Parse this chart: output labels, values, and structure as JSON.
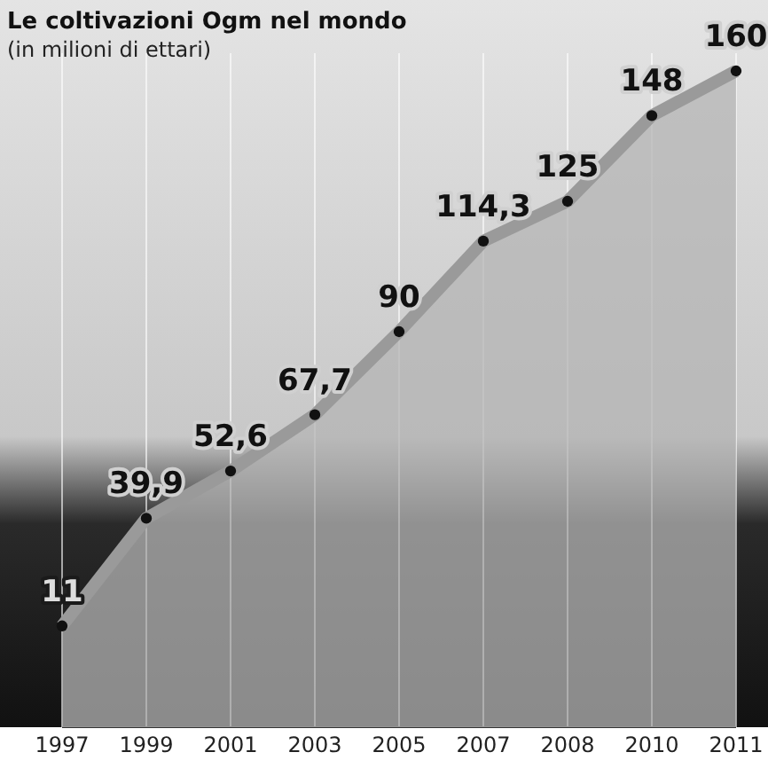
{
  "chart_data": {
    "type": "area",
    "title": "Le coltivazioni Ogm nel mondo",
    "subtitle": "(in milioni di ettari)",
    "categories": [
      "1997",
      "1999",
      "2001",
      "2003",
      "2005",
      "2007",
      "2008",
      "2010",
      "2011"
    ],
    "series": [
      {
        "color": "#9a9a9a",
        "values": [
          11,
          39.9,
          52.6,
          67.7,
          90,
          114.3,
          125,
          148,
          160
        ],
        "value_labels": [
          "11",
          "39,9",
          "52,6",
          "67,7",
          "90",
          "114,3",
          "125",
          "148",
          "160"
        ]
      }
    ],
    "marker": "circle",
    "grid": "x"
  }
}
